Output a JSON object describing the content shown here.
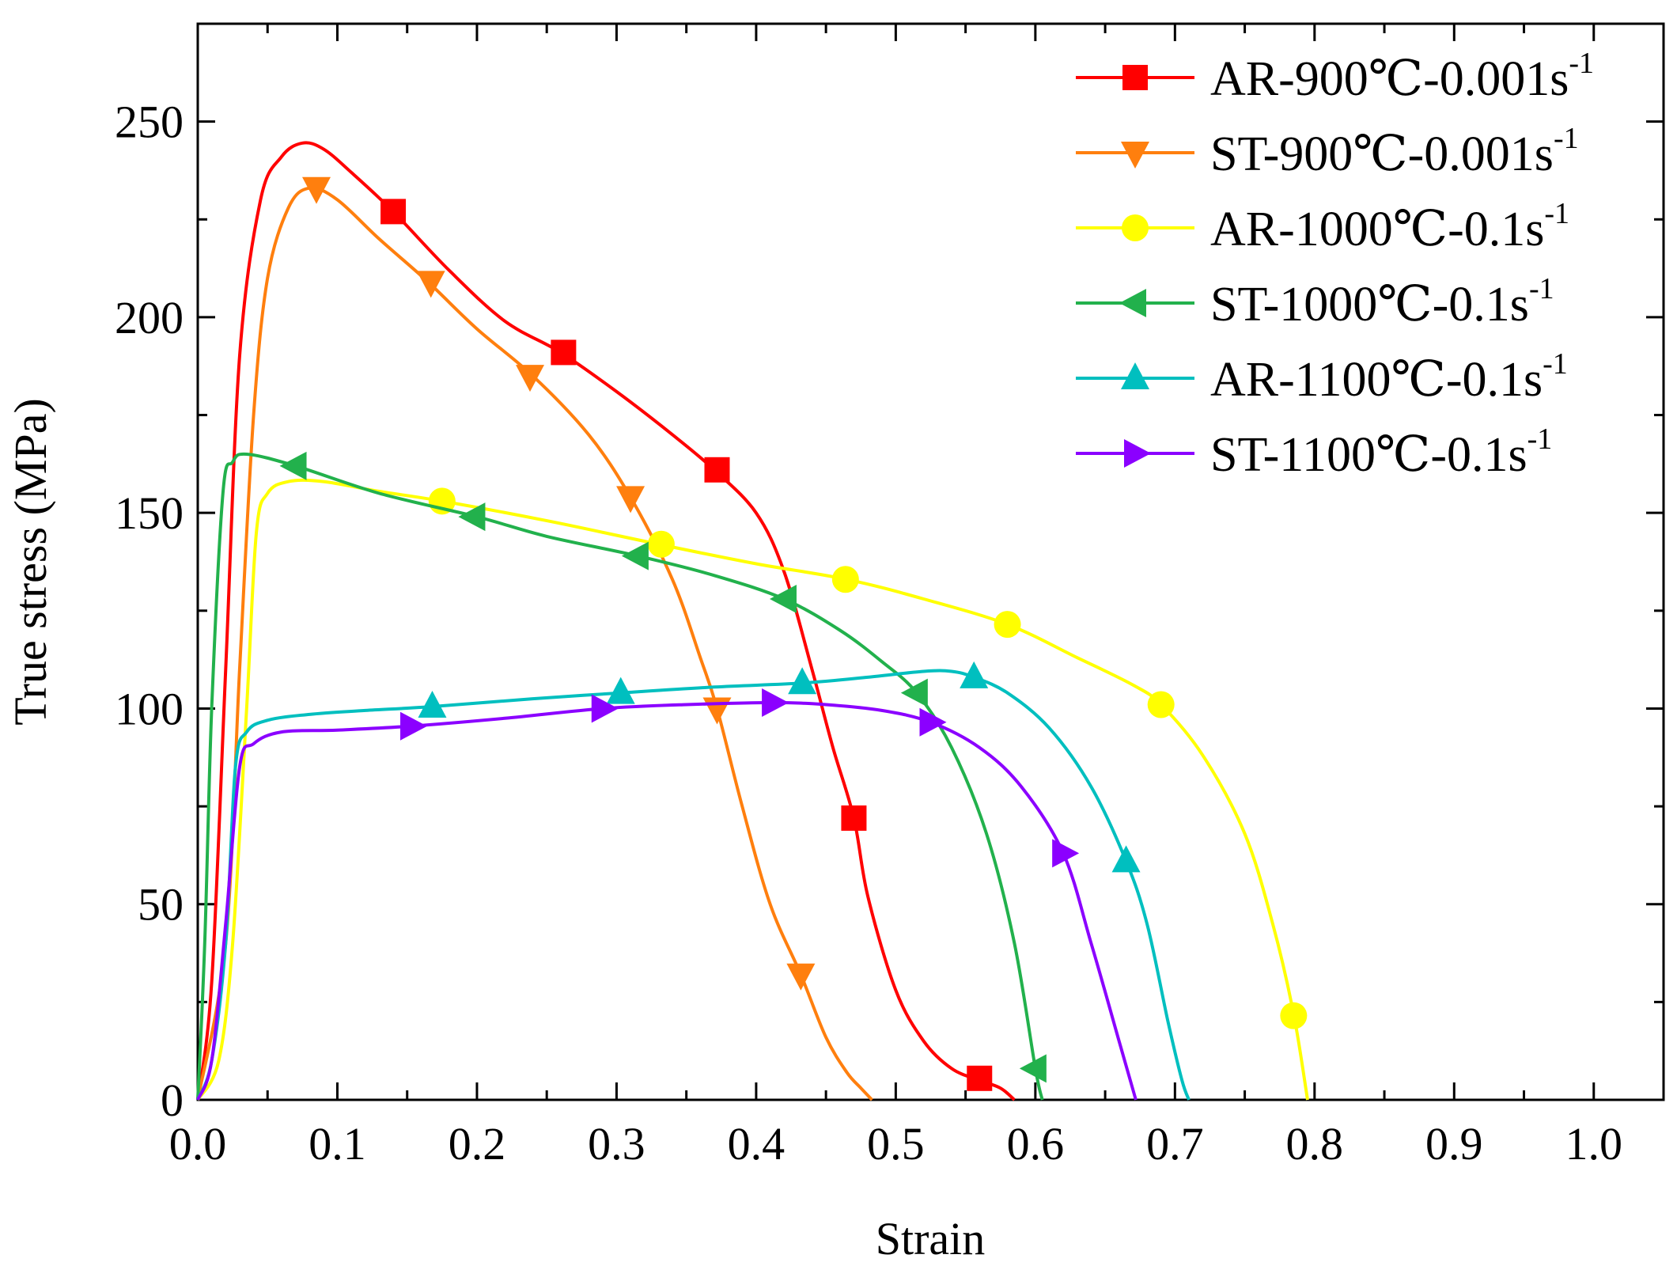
{
  "chart_data": {
    "type": "line",
    "title": "",
    "xlabel": "Strain",
    "ylabel": "True stress (MPa)",
    "xlim": [
      0.0,
      1.05
    ],
    "ylim": [
      0,
      275
    ],
    "xticks": [
      "0.0",
      "0.1",
      "0.2",
      "0.3",
      "0.4",
      "0.5",
      "0.6",
      "0.7",
      "0.8",
      "0.9",
      "1.0"
    ],
    "yticks": [
      "0",
      "50",
      "100",
      "150",
      "200",
      "250"
    ],
    "legend_position": "top-right",
    "series": [
      {
        "name": "AR-900℃-0.001s",
        "name_sup": "-1",
        "color": "#ff0000",
        "marker": "square",
        "points": [
          [
            0.0,
            0
          ],
          [
            0.01,
            30
          ],
          [
            0.02,
            110
          ],
          [
            0.03,
            190
          ],
          [
            0.045,
            230
          ],
          [
            0.06,
            241
          ],
          [
            0.075,
            244.5
          ],
          [
            0.09,
            243
          ],
          [
            0.11,
            237
          ],
          [
            0.14,
            227
          ],
          [
            0.18,
            212
          ],
          [
            0.22,
            199
          ],
          [
            0.26,
            191
          ],
          [
            0.3,
            181
          ],
          [
            0.34,
            170
          ],
          [
            0.37,
            161
          ],
          [
            0.4,
            150
          ],
          [
            0.42,
            135
          ],
          [
            0.44,
            110
          ],
          [
            0.455,
            90
          ],
          [
            0.47,
            72
          ],
          [
            0.48,
            52
          ],
          [
            0.5,
            28
          ],
          [
            0.52,
            15
          ],
          [
            0.54,
            8
          ],
          [
            0.56,
            5
          ],
          [
            0.575,
            3
          ],
          [
            0.585,
            0
          ]
        ],
        "markers": [
          [
            0.14,
            227
          ],
          [
            0.262,
            191
          ],
          [
            0.372,
            161
          ],
          [
            0.47,
            72
          ],
          [
            0.56,
            5.5
          ]
        ]
      },
      {
        "name": "ST-900℃-0.001s",
        "name_sup": "-1",
        "color": "#ff7f0e",
        "marker": "triangle-down",
        "points": [
          [
            0.0,
            0
          ],
          [
            0.02,
            40
          ],
          [
            0.03,
            110
          ],
          [
            0.04,
            175
          ],
          [
            0.05,
            210
          ],
          [
            0.065,
            228
          ],
          [
            0.08,
            233
          ],
          [
            0.1,
            230
          ],
          [
            0.13,
            220
          ],
          [
            0.165,
            209
          ],
          [
            0.2,
            197
          ],
          [
            0.24,
            185
          ],
          [
            0.28,
            170
          ],
          [
            0.31,
            154
          ],
          [
            0.34,
            133
          ],
          [
            0.36,
            113
          ],
          [
            0.372,
            100
          ],
          [
            0.39,
            75
          ],
          [
            0.41,
            50
          ],
          [
            0.432,
            32
          ],
          [
            0.45,
            16
          ],
          [
            0.465,
            7
          ],
          [
            0.475,
            3
          ],
          [
            0.483,
            0
          ]
        ],
        "markers": [
          [
            0.085,
            233
          ],
          [
            0.167,
            209
          ],
          [
            0.238,
            185
          ],
          [
            0.31,
            154
          ],
          [
            0.372,
            100
          ],
          [
            0.432,
            32
          ]
        ]
      },
      {
        "name": "AR-1000℃-0.1s",
        "name_sup": "-1",
        "color": "#ffff00",
        "marker": "circle",
        "points": [
          [
            0.0,
            0
          ],
          [
            0.015,
            10
          ],
          [
            0.025,
            40
          ],
          [
            0.035,
            100
          ],
          [
            0.042,
            145
          ],
          [
            0.05,
            155
          ],
          [
            0.065,
            158
          ],
          [
            0.09,
            158
          ],
          [
            0.13,
            155.5
          ],
          [
            0.175,
            153
          ],
          [
            0.25,
            148
          ],
          [
            0.33,
            142
          ],
          [
            0.4,
            137
          ],
          [
            0.465,
            133
          ],
          [
            0.52,
            128
          ],
          [
            0.58,
            121.5
          ],
          [
            0.63,
            113
          ],
          [
            0.67,
            106
          ],
          [
            0.69,
            101
          ],
          [
            0.72,
            88
          ],
          [
            0.75,
            68
          ],
          [
            0.77,
            45
          ],
          [
            0.785,
            22
          ],
          [
            0.795,
            0
          ]
        ],
        "markers": [
          [
            0.175,
            153
          ],
          [
            0.332,
            142
          ],
          [
            0.464,
            133
          ],
          [
            0.58,
            121.5
          ],
          [
            0.69,
            101
          ],
          [
            0.785,
            21.5
          ]
        ]
      },
      {
        "name": "ST-1000℃-0.1s",
        "name_sup": "-1",
        "color": "#22b14c",
        "marker": "triangle-left",
        "points": [
          [
            0.0,
            0
          ],
          [
            0.005,
            40
          ],
          [
            0.01,
            100
          ],
          [
            0.018,
            155
          ],
          [
            0.025,
            163
          ],
          [
            0.035,
            165
          ],
          [
            0.07,
            162
          ],
          [
            0.13,
            155
          ],
          [
            0.2,
            149
          ],
          [
            0.25,
            144
          ],
          [
            0.315,
            139
          ],
          [
            0.37,
            134
          ],
          [
            0.42,
            128
          ],
          [
            0.46,
            120
          ],
          [
            0.49,
            112
          ],
          [
            0.515,
            104
          ],
          [
            0.54,
            90
          ],
          [
            0.565,
            68
          ],
          [
            0.585,
            40
          ],
          [
            0.6,
            8
          ],
          [
            0.605,
            0
          ]
        ],
        "markers": [
          [
            0.07,
            162
          ],
          [
            0.198,
            149
          ],
          [
            0.315,
            139
          ],
          [
            0.421,
            128
          ],
          [
            0.515,
            104
          ],
          [
            0.6,
            8
          ]
        ]
      },
      {
        "name": "AR-1100℃-0.1s",
        "name_sup": "-1",
        "color": "#00bfbf",
        "marker": "triangle-up",
        "points": [
          [
            0.0,
            0
          ],
          [
            0.01,
            10
          ],
          [
            0.02,
            40
          ],
          [
            0.027,
            85
          ],
          [
            0.035,
            94
          ],
          [
            0.05,
            97
          ],
          [
            0.08,
            98.5
          ],
          [
            0.12,
            99.5
          ],
          [
            0.168,
            100.5
          ],
          [
            0.24,
            102.5
          ],
          [
            0.303,
            104
          ],
          [
            0.37,
            105.5
          ],
          [
            0.433,
            106.5
          ],
          [
            0.48,
            108
          ],
          [
            0.52,
            109.5
          ],
          [
            0.54,
            109.5
          ],
          [
            0.556,
            108
          ],
          [
            0.58,
            104
          ],
          [
            0.61,
            95
          ],
          [
            0.64,
            80
          ],
          [
            0.665,
            61
          ],
          [
            0.68,
            45
          ],
          [
            0.695,
            20
          ],
          [
            0.705,
            5
          ],
          [
            0.71,
            0
          ]
        ],
        "markers": [
          [
            0.168,
            100.5
          ],
          [
            0.303,
            104
          ],
          [
            0.433,
            106.5
          ],
          [
            0.556,
            108
          ],
          [
            0.665,
            61
          ]
        ]
      },
      {
        "name": "ST-1100℃-0.1s",
        "name_sup": "-1",
        "color": "#8b00ff",
        "marker": "triangle-right",
        "points": [
          [
            0.0,
            0
          ],
          [
            0.01,
            10
          ],
          [
            0.02,
            45
          ],
          [
            0.03,
            85
          ],
          [
            0.04,
            91
          ],
          [
            0.06,
            94
          ],
          [
            0.1,
            94.5
          ],
          [
            0.153,
            95.5
          ],
          [
            0.22,
            97.5
          ],
          [
            0.29,
            100
          ],
          [
            0.35,
            101
          ],
          [
            0.412,
            101.5
          ],
          [
            0.45,
            101
          ],
          [
            0.49,
            99.5
          ],
          [
            0.525,
            96.5
          ],
          [
            0.56,
            90
          ],
          [
            0.59,
            80
          ],
          [
            0.62,
            63
          ],
          [
            0.64,
            40
          ],
          [
            0.66,
            15
          ],
          [
            0.672,
            0
          ]
        ],
        "markers": [
          [
            0.153,
            95.5
          ],
          [
            0.29,
            100
          ],
          [
            0.412,
            101.5
          ],
          [
            0.525,
            96.5
          ],
          [
            0.62,
            63
          ]
        ]
      }
    ]
  }
}
